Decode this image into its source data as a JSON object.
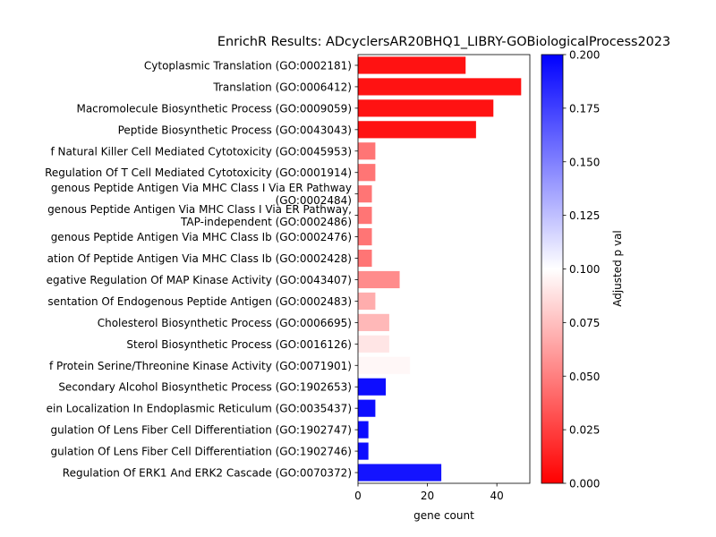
{
  "chart_data": {
    "type": "bar",
    "orientation": "horizontal",
    "title": "EnrichR Results: ADcyclersAR20BHQ1_LIBRY-GOBiologicalProcess2023",
    "xlabel": "gene count",
    "ylabel": "",
    "xlim": [
      0,
      49.5
    ],
    "xticks": [
      "0",
      "20",
      "40"
    ],
    "categories": [
      [
        "Cytoplasmic Translation (GO:0002181)"
      ],
      [
        "Translation (GO:0006412)"
      ],
      [
        "Macromolecule Biosynthetic Process (GO:0009059)"
      ],
      [
        "Peptide Biosynthetic Process (GO:0043043)"
      ],
      [
        "f Natural Killer Cell Mediated Cytotoxicity (GO:0045953)"
      ],
      [
        "Regulation Of T Cell Mediated Cytotoxicity (GO:0001914)"
      ],
      [
        "genous Peptide Antigen Via MHC Class I Via ER Pathway",
        "(GO:0002484)"
      ],
      [
        "genous Peptide Antigen Via MHC Class I Via ER Pathway,",
        "TAP-independent (GO:0002486)"
      ],
      [
        "genous Peptide Antigen Via MHC Class Ib (GO:0002476)"
      ],
      [
        "ation Of Peptide Antigen Via MHC Class Ib (GO:0002428)"
      ],
      [
        "egative Regulation Of MAP Kinase Activity (GO:0043407)"
      ],
      [
        "sentation Of Endogenous Peptide Antigen (GO:0002483)"
      ],
      [
        "Cholesterol Biosynthetic Process (GO:0006695)"
      ],
      [
        "Sterol Biosynthetic Process (GO:0016126)"
      ],
      [
        "f Protein Serine/Threonine Kinase Activity (GO:0071901)"
      ],
      [
        "Secondary Alcohol Biosynthetic Process (GO:1902653)"
      ],
      [
        "ein Localization In Endoplasmic Reticulum (GO:0035437)"
      ],
      [
        "gulation Of Lens Fiber Cell Differentiation (GO:1902747)"
      ],
      [
        "gulation Of Lens Fiber Cell Differentiation (GO:1902746)"
      ],
      [
        "Regulation Of ERK1 And ERK2 Cascade (GO:0070372)"
      ]
    ],
    "values": [
      31,
      47,
      39,
      34,
      5,
      5,
      4,
      4,
      4,
      4,
      12,
      5,
      9,
      9,
      15,
      8,
      5,
      3,
      3,
      24
    ],
    "adjusted_p": [
      0.007,
      0.007,
      0.007,
      0.007,
      0.046,
      0.046,
      0.046,
      0.046,
      0.046,
      0.046,
      0.055,
      0.068,
      0.072,
      0.09,
      0.097,
      0.195,
      0.195,
      0.195,
      0.195,
      0.192
    ],
    "colorbar": {
      "label": "Adjusted p val",
      "range": [
        0,
        0.2
      ],
      "ticks": [
        "0.000",
        "0.025",
        "0.050",
        "0.075",
        "0.100",
        "0.125",
        "0.150",
        "0.175",
        "0.200"
      ],
      "colormap": [
        "#ff0000",
        "#ffffff",
        "#0000ff"
      ]
    },
    "grid": false,
    "legend": "none"
  }
}
